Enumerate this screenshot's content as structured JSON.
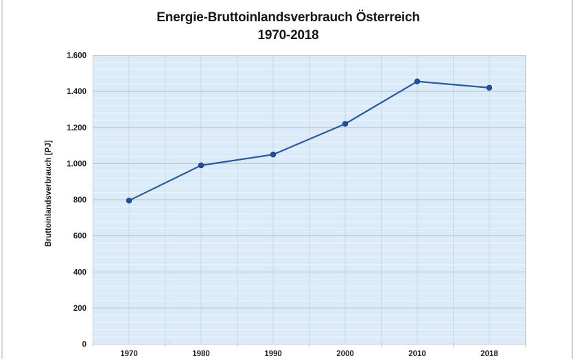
{
  "title": {
    "line1": "Energie-Bruttoinlandsverbrauch Österreich",
    "line2": "1970-2018"
  },
  "chart_data": {
    "type": "line",
    "title": "Energie-Bruttoinlandsverbrauch Österreich 1970-2018",
    "categories": [
      "1970",
      "1980",
      "1990",
      "2000",
      "2010",
      "2018"
    ],
    "series": [
      {
        "name": "Bruttoinlandsverbrauch",
        "values": [
          795,
          990,
          1050,
          1220,
          1455,
          1420
        ]
      }
    ],
    "xlabel": "",
    "ylabel": "Bruttoinlandsverbrauch [PJ]",
    "ylim": [
      0,
      1600
    ],
    "ytick_step": 200,
    "ytick_labels": [
      "0",
      "200",
      "400",
      "600",
      "800",
      "1.000",
      "1.200",
      "1.400",
      "1.600"
    ],
    "minor_ytick_step": 40,
    "legend": "none",
    "grid": "horizontal major + faint minor, vertical half-category lines",
    "colors": {
      "plot_bg": "#dcebf9",
      "grid_major": "#b7c5c0",
      "grid_vertical": "#c9d7e4",
      "grid_minor": "rgba(255,255,255,0.55)",
      "line": "#2458a8",
      "marker": "#1f4e9e",
      "marker_edge": "#16407f",
      "tick_text": "#1f1f1f"
    }
  }
}
